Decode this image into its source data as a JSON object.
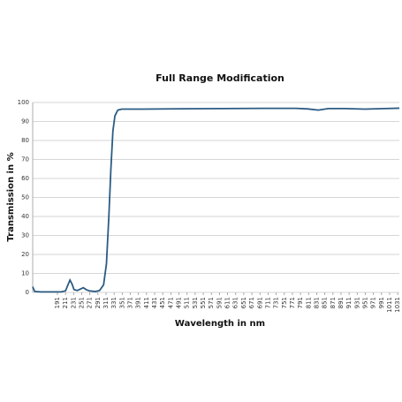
{
  "chart_data": {
    "type": "line",
    "title": "Full Range Modification",
    "x_label": "Wavelength in nm",
    "y_label": "Transmission in %",
    "xlim": [
      130,
      1035
    ],
    "ylim": [
      0,
      100
    ],
    "xticks": [
      191,
      211,
      231,
      251,
      271,
      291,
      311,
      331,
      351,
      371,
      391,
      411,
      431,
      451,
      471,
      491,
      511,
      531,
      551,
      571,
      591,
      611,
      631,
      651,
      671,
      691,
      711,
      731,
      751,
      771,
      791,
      811,
      831,
      851,
      871,
      891,
      911,
      931,
      951,
      971,
      991,
      1011,
      1031
    ],
    "yticks": [
      0,
      10,
      20,
      30,
      40,
      50,
      60,
      70,
      80,
      90,
      100
    ],
    "grid": true,
    "series": [
      {
        "color": "#2b5b84",
        "x": [
          130,
          135,
          150,
          200,
          211,
          217,
          222,
          227,
          232,
          240,
          250,
          255,
          262,
          270,
          285,
          295,
          305,
          312,
          318,
          323,
          328,
          333,
          340,
          350,
          400,
          500,
          600,
          700,
          780,
          810,
          835,
          860,
          900,
          950,
          1000,
          1035
        ],
        "values": [
          3,
          0.5,
          0.3,
          0.3,
          0.8,
          4,
          6.5,
          4.5,
          1.5,
          1,
          2,
          2.5,
          1.5,
          0.8,
          0.5,
          1,
          4,
          15,
          40,
          65,
          85,
          93,
          96,
          96.5,
          96.5,
          96.7,
          96.8,
          96.9,
          96.9,
          96.6,
          96,
          96.8,
          96.8,
          96.5,
          96.8,
          97
        ]
      }
    ]
  }
}
